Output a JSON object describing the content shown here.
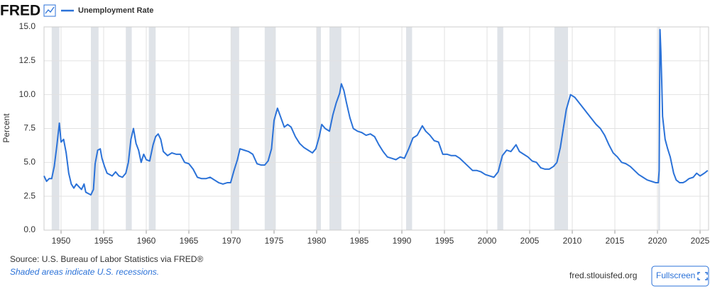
{
  "header": {
    "logo": "FRED"
  },
  "chart_data": {
    "type": "line",
    "y_label": "Percent",
    "series": [
      {
        "name": "Unemployment Rate",
        "color": "#2b72d8",
        "x": [
          1948.0,
          1948.3,
          1948.6,
          1948.9,
          1949.2,
          1949.5,
          1949.8,
          1950.0,
          1950.3,
          1950.6,
          1950.9,
          1951.2,
          1951.5,
          1951.8,
          1952.1,
          1952.4,
          1952.7,
          1952.9,
          1953.2,
          1953.5,
          1953.8,
          1954.0,
          1954.3,
          1954.6,
          1954.8,
          1955.1,
          1955.4,
          1955.7,
          1956.0,
          1956.4,
          1956.8,
          1957.2,
          1957.6,
          1957.9,
          1958.2,
          1958.5,
          1958.8,
          1959.1,
          1959.4,
          1959.7,
          1960.0,
          1960.4,
          1960.8,
          1961.1,
          1961.4,
          1961.7,
          1962.0,
          1962.5,
          1963.0,
          1963.5,
          1964.0,
          1964.5,
          1965.0,
          1965.5,
          1966.0,
          1966.5,
          1967.0,
          1967.5,
          1968.0,
          1968.5,
          1969.0,
          1969.5,
          1969.9,
          1970.3,
          1970.7,
          1971.0,
          1971.5,
          1972.0,
          1972.5,
          1973.0,
          1973.5,
          1973.9,
          1974.3,
          1974.7,
          1975.0,
          1975.4,
          1975.8,
          1976.2,
          1976.6,
          1977.0,
          1977.5,
          1978.0,
          1978.5,
          1979.0,
          1979.5,
          1979.9,
          1980.3,
          1980.6,
          1981.0,
          1981.5,
          1981.9,
          1982.3,
          1982.7,
          1982.9,
          1983.2,
          1983.5,
          1983.9,
          1984.3,
          1984.8,
          1985.3,
          1985.8,
          1986.3,
          1986.8,
          1987.3,
          1987.8,
          1988.3,
          1988.8,
          1989.3,
          1989.8,
          1990.3,
          1990.8,
          1991.3,
          1991.8,
          1992.4,
          1992.8,
          1993.3,
          1993.8,
          1994.3,
          1994.8,
          1995.3,
          1995.8,
          1996.3,
          1996.8,
          1997.3,
          1997.8,
          1998.3,
          1998.8,
          1999.3,
          1999.8,
          2000.3,
          2000.8,
          2001.3,
          2001.8,
          2002.3,
          2002.8,
          2003.4,
          2003.8,
          2004.3,
          2004.8,
          2005.3,
          2005.8,
          2006.3,
          2006.8,
          2007.3,
          2007.8,
          2008.2,
          2008.6,
          2008.9,
          2009.3,
          2009.8,
          2010.3,
          2010.8,
          2011.3,
          2011.8,
          2012.3,
          2012.8,
          2013.3,
          2013.8,
          2014.3,
          2014.8,
          2015.3,
          2015.8,
          2016.3,
          2016.8,
          2017.3,
          2017.8,
          2018.3,
          2018.8,
          2019.3,
          2019.8,
          2020.1,
          2020.2,
          2020.3,
          2020.4,
          2020.5,
          2020.6,
          2020.9,
          2021.2,
          2021.5,
          2021.9,
          2022.2,
          2022.6,
          2023.0,
          2023.3,
          2023.7,
          2024.2,
          2024.6,
          2025.0,
          2025.5,
          2025.9
        ],
        "values": [
          4.0,
          3.6,
          3.8,
          3.8,
          4.7,
          6.2,
          7.9,
          6.5,
          6.7,
          5.7,
          4.2,
          3.4,
          3.1,
          3.4,
          3.2,
          3.0,
          3.4,
          2.8,
          2.7,
          2.6,
          3.0,
          4.9,
          5.9,
          6.0,
          5.3,
          4.7,
          4.2,
          4.1,
          4.0,
          4.3,
          4.0,
          3.9,
          4.2,
          5.0,
          6.7,
          7.5,
          6.4,
          5.9,
          5.0,
          5.6,
          5.2,
          5.1,
          6.3,
          6.9,
          7.1,
          6.7,
          5.8,
          5.5,
          5.7,
          5.6,
          5.6,
          5.0,
          4.9,
          4.5,
          3.9,
          3.8,
          3.8,
          3.9,
          3.7,
          3.5,
          3.4,
          3.5,
          3.5,
          4.4,
          5.2,
          6.0,
          5.9,
          5.8,
          5.6,
          4.9,
          4.8,
          4.8,
          5.1,
          6.0,
          8.1,
          9.0,
          8.3,
          7.6,
          7.8,
          7.6,
          6.9,
          6.4,
          6.1,
          5.9,
          5.7,
          6.0,
          6.9,
          7.8,
          7.5,
          7.3,
          8.5,
          9.4,
          10.1,
          10.8,
          10.3,
          9.4,
          8.3,
          7.5,
          7.3,
          7.2,
          7.0,
          7.1,
          6.9,
          6.3,
          5.8,
          5.4,
          5.3,
          5.2,
          5.4,
          5.3,
          6.0,
          6.8,
          7.0,
          7.7,
          7.3,
          7.0,
          6.6,
          6.5,
          5.6,
          5.6,
          5.5,
          5.5,
          5.3,
          5.0,
          4.7,
          4.4,
          4.4,
          4.3,
          4.1,
          4.0,
          3.9,
          4.3,
          5.5,
          5.9,
          5.8,
          6.3,
          5.8,
          5.6,
          5.4,
          5.1,
          5.0,
          4.6,
          4.5,
          4.5,
          4.7,
          5.0,
          6.1,
          7.3,
          8.9,
          10.0,
          9.8,
          9.4,
          9.0,
          8.6,
          8.2,
          7.8,
          7.5,
          7.0,
          6.3,
          5.7,
          5.4,
          5.0,
          4.9,
          4.7,
          4.4,
          4.1,
          3.9,
          3.7,
          3.6,
          3.5,
          3.5,
          4.4,
          14.8,
          13.2,
          11.0,
          8.4,
          6.7,
          6.0,
          5.4,
          4.2,
          3.7,
          3.5,
          3.5,
          3.6,
          3.8,
          3.9,
          4.2,
          4.0,
          4.2,
          4.4
        ]
      }
    ],
    "recessions": [
      [
        1948.9,
        1949.8
      ],
      [
        1953.5,
        1954.4
      ],
      [
        1957.6,
        1958.3
      ],
      [
        1960.3,
        1961.1
      ],
      [
        1969.9,
        1970.9
      ],
      [
        1973.9,
        1975.2
      ],
      [
        1980.0,
        1980.5
      ],
      [
        1981.5,
        1982.9
      ],
      [
        1990.5,
        1991.2
      ],
      [
        2001.2,
        2001.9
      ],
      [
        2007.9,
        2009.5
      ],
      [
        2020.1,
        2020.3
      ]
    ],
    "xlim": [
      1948,
      2026
    ],
    "xticks": [
      1950,
      1955,
      1960,
      1965,
      1970,
      1975,
      1980,
      1985,
      1990,
      1995,
      2000,
      2005,
      2010,
      2015,
      2020,
      2025
    ],
    "ylim": [
      0,
      15
    ],
    "yticks": [
      {
        "value": 0,
        "label": "0.0"
      },
      2.5,
      {
        "value": 5,
        "label": "5.0"
      },
      7.5,
      {
        "value": 10,
        "label": "10.0"
      },
      12.5,
      {
        "value": 15,
        "label": "15.0"
      }
    ],
    "grid": true
  },
  "footer": {
    "source": "Source: U.S. Bureau of Labor Statistics via FRED®",
    "note": "Shaded areas indicate U.S. recessions.",
    "site": "fred.stlouisfed.org",
    "button": "Fullscreen"
  }
}
